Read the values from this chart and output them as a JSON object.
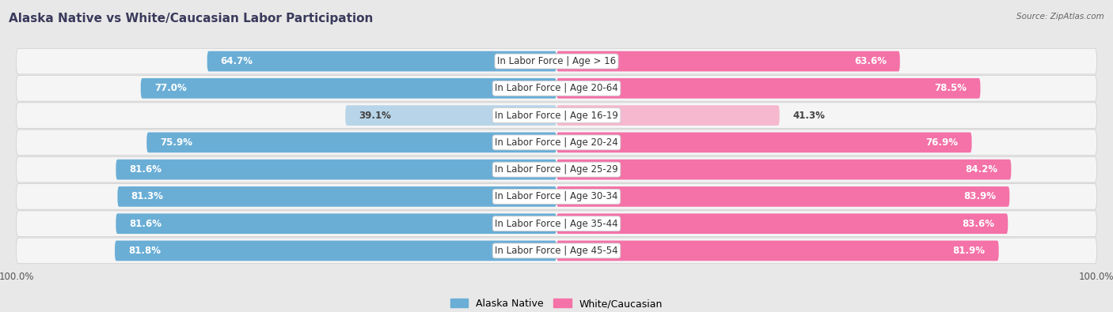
{
  "title": "Alaska Native vs White/Caucasian Labor Participation",
  "source": "Source: ZipAtlas.com",
  "categories": [
    "In Labor Force | Age > 16",
    "In Labor Force | Age 20-64",
    "In Labor Force | Age 16-19",
    "In Labor Force | Age 20-24",
    "In Labor Force | Age 25-29",
    "In Labor Force | Age 30-34",
    "In Labor Force | Age 35-44",
    "In Labor Force | Age 45-54"
  ],
  "alaska_values": [
    64.7,
    77.0,
    39.1,
    75.9,
    81.6,
    81.3,
    81.6,
    81.8
  ],
  "white_values": [
    63.6,
    78.5,
    41.3,
    76.9,
    84.2,
    83.9,
    83.6,
    81.9
  ],
  "alaska_color_full": "#6AAED6",
  "alaska_color_light": "#B8D4E8",
  "white_color_full": "#F472A8",
  "white_color_light": "#F5B8CF",
  "bar_height": 0.75,
  "max_value": 100.0,
  "background_color": "#e8e8e8",
  "row_bg": "#f5f5f5",
  "label_fontsize": 8.5,
  "title_fontsize": 11,
  "legend_fontsize": 9,
  "axis_label_fontsize": 8.5,
  "title_color": "#3a3a5c",
  "source_color": "#666666",
  "value_color_dark": "#444444",
  "value_color_white": "#ffffff"
}
